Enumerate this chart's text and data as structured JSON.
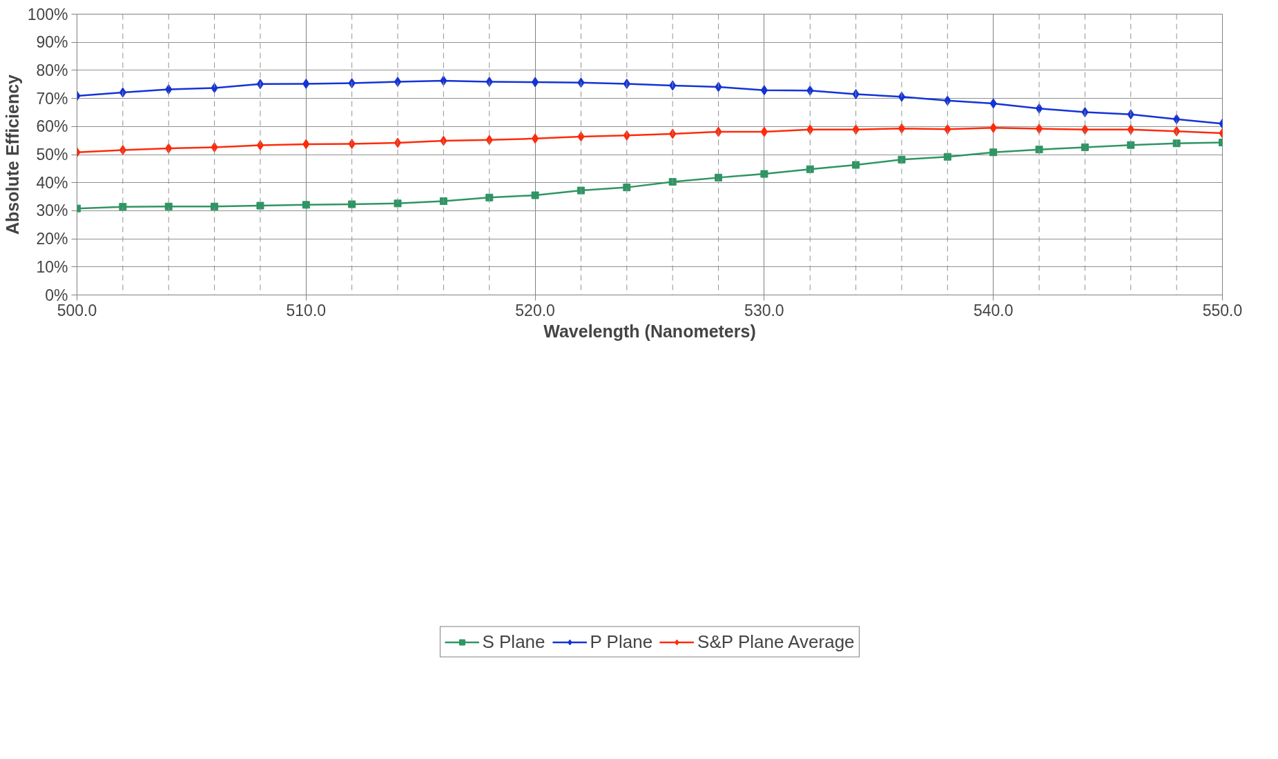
{
  "chart_data": {
    "type": "line",
    "xlabel": "Wavelength (Nanometers)",
    "ylabel": "Absolute Efficiency",
    "x": [
      500,
      502,
      504,
      506,
      508,
      510,
      512,
      514,
      516,
      518,
      520,
      522,
      524,
      526,
      528,
      530,
      532,
      534,
      536,
      538,
      540,
      542,
      544,
      546,
      548,
      550
    ],
    "series": [
      {
        "name": "S Plane",
        "color": "#2e9563",
        "marker": "square",
        "values": [
          30.8,
          31.4,
          31.5,
          31.5,
          31.8,
          32.1,
          32.3,
          32.6,
          33.4,
          34.7,
          35.5,
          37.2,
          38.3,
          40.3,
          41.8,
          43.1,
          44.8,
          46.3,
          48.2,
          49.2,
          50.8,
          51.8,
          52.6,
          53.4,
          54.0,
          54.3
        ]
      },
      {
        "name": "P Plane",
        "color": "#1433d6",
        "marker": "diamond",
        "values": [
          70.9,
          72.1,
          73.2,
          73.7,
          75.1,
          75.2,
          75.4,
          75.9,
          76.3,
          75.9,
          75.8,
          75.6,
          75.2,
          74.6,
          74.1,
          72.9,
          72.8,
          71.5,
          70.6,
          69.2,
          68.2,
          66.4,
          65.1,
          64.3,
          62.6,
          61.0
        ]
      },
      {
        "name": "S&P Plane Average",
        "color": "#ff2a0a",
        "marker": "diamond",
        "values": [
          50.8,
          51.6,
          52.2,
          52.6,
          53.3,
          53.7,
          53.8,
          54.2,
          54.9,
          55.2,
          55.7,
          56.4,
          56.8,
          57.4,
          58.1,
          58.1,
          58.9,
          58.9,
          59.3,
          59.0,
          59.5,
          59.2,
          58.9,
          58.9,
          58.3,
          57.6
        ]
      }
    ],
    "xlim": [
      500,
      550
    ],
    "xticks": [
      {
        "value": 500,
        "label": "500.0"
      },
      {
        "value": 502,
        "label": null
      },
      {
        "value": 504,
        "label": null
      },
      {
        "value": 506,
        "label": null
      },
      {
        "value": 508,
        "label": null
      },
      {
        "value": 510,
        "label": "510.0"
      },
      {
        "value": 512,
        "label": null
      },
      {
        "value": 514,
        "label": null
      },
      {
        "value": 516,
        "label": null
      },
      {
        "value": 518,
        "label": null
      },
      {
        "value": 520,
        "label": "520.0"
      },
      {
        "value": 522,
        "label": null
      },
      {
        "value": 524,
        "label": null
      },
      {
        "value": 526,
        "label": null
      },
      {
        "value": 528,
        "label": null
      },
      {
        "value": 530,
        "label": "530.0"
      },
      {
        "value": 532,
        "label": null
      },
      {
        "value": 534,
        "label": null
      },
      {
        "value": 536,
        "label": null
      },
      {
        "value": 538,
        "label": null
      },
      {
        "value": 540,
        "label": "540.0"
      },
      {
        "value": 542,
        "label": null
      },
      {
        "value": 544,
        "label": null
      },
      {
        "value": 546,
        "label": null
      },
      {
        "value": 548,
        "label": null
      },
      {
        "value": 550,
        "label": "550.0"
      }
    ],
    "ylim": [
      0,
      100
    ],
    "yticks": [
      {
        "value": 0,
        "label": "0%"
      },
      {
        "value": 10,
        "label": "10%"
      },
      {
        "value": 20,
        "label": "20%"
      },
      {
        "value": 30,
        "label": "30%"
      },
      {
        "value": 40,
        "label": "40%"
      },
      {
        "value": 50,
        "label": "50%"
      },
      {
        "value": 60,
        "label": "60%"
      },
      {
        "value": 70,
        "label": "70%"
      },
      {
        "value": 80,
        "label": "80%"
      },
      {
        "value": 90,
        "label": "90%"
      },
      {
        "value": 100,
        "label": "100%"
      }
    ],
    "grid": true,
    "legend": "bottom",
    "line_style": "solid"
  }
}
